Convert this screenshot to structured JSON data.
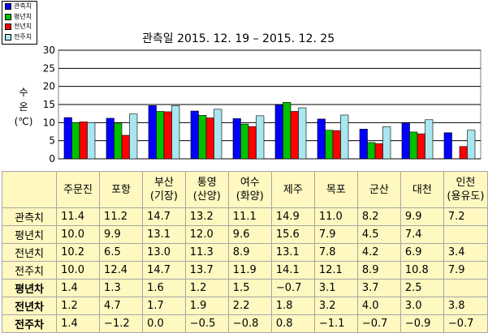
{
  "chart_data": {
    "type": "bar",
    "title": "관측일 2015. 12. 19 – 2015. 12. 25",
    "ylabel": "수\n온\n(℃)",
    "ylim": [
      0,
      30
    ],
    "yticks": [
      "0",
      "5",
      "10",
      "15",
      "20",
      "25",
      "30"
    ],
    "grid": true,
    "legend_position": "top-left",
    "categories": [
      "주문진",
      "포항",
      "부산\n(기장)",
      "통영\n(산양)",
      "여수\n(화양)",
      "제주",
      "목포",
      "군산",
      "대천",
      "인천\n(용유도)"
    ],
    "series": [
      {
        "name": "관측치",
        "color": "#0000ff",
        "values": [
          11.4,
          11.2,
          14.7,
          13.2,
          11.1,
          14.9,
          11.0,
          8.2,
          9.9,
          7.2
        ]
      },
      {
        "name": "평년치",
        "color": "#00c000",
        "values": [
          10.0,
          9.9,
          13.1,
          12.0,
          9.6,
          15.6,
          7.9,
          4.5,
          7.4,
          null
        ]
      },
      {
        "name": "전년치",
        "color": "#ff0000",
        "values": [
          10.2,
          6.5,
          13.0,
          11.3,
          8.9,
          13.1,
          7.8,
          4.2,
          6.9,
          3.4
        ]
      },
      {
        "name": "전주치",
        "color": "#a8e6f0",
        "values": [
          10.0,
          12.4,
          14.7,
          13.7,
          11.9,
          14.1,
          12.1,
          8.9,
          10.8,
          7.9
        ]
      }
    ]
  },
  "table": {
    "rows": [
      {
        "label": "관측치",
        "bold": false,
        "cells": [
          "11.4",
          "11.2",
          "14.7",
          "13.2",
          "11.1",
          "14.9",
          "11.0",
          "8.2",
          "9.9",
          "7.2"
        ]
      },
      {
        "label": "평년치",
        "bold": false,
        "cells": [
          "10.0",
          "9.9",
          "13.1",
          "12.0",
          "9.6",
          "15.6",
          "7.9",
          "4.5",
          "7.4",
          ""
        ]
      },
      {
        "label": "전년치",
        "bold": false,
        "cells": [
          "10.2",
          "6.5",
          "13.0",
          "11.3",
          "8.9",
          "13.1",
          "7.8",
          "4.2",
          "6.9",
          "3.4"
        ]
      },
      {
        "label": "전주치",
        "bold": false,
        "cells": [
          "10.0",
          "12.4",
          "14.7",
          "13.7",
          "11.9",
          "14.1",
          "12.1",
          "8.9",
          "10.8",
          "7.9"
        ]
      },
      {
        "label": "평년차",
        "bold": true,
        "cells": [
          "1.4",
          "1.3",
          "1.6",
          "1.2",
          "1.5",
          "−0.7",
          "3.1",
          "3.7",
          "2.5",
          ""
        ]
      },
      {
        "label": "전년차",
        "bold": true,
        "cells": [
          "1.2",
          "4.7",
          "1.7",
          "1.9",
          "2.2",
          "1.8",
          "3.2",
          "4.0",
          "3.0",
          "3.8"
        ]
      },
      {
        "label": "전주차",
        "bold": true,
        "cells": [
          "1.4",
          "−1.2",
          "0.0",
          "−0.5",
          "−0.8",
          "0.8",
          "−1.1",
          "−0.7",
          "−0.9",
          "−0.7"
        ]
      }
    ]
  }
}
